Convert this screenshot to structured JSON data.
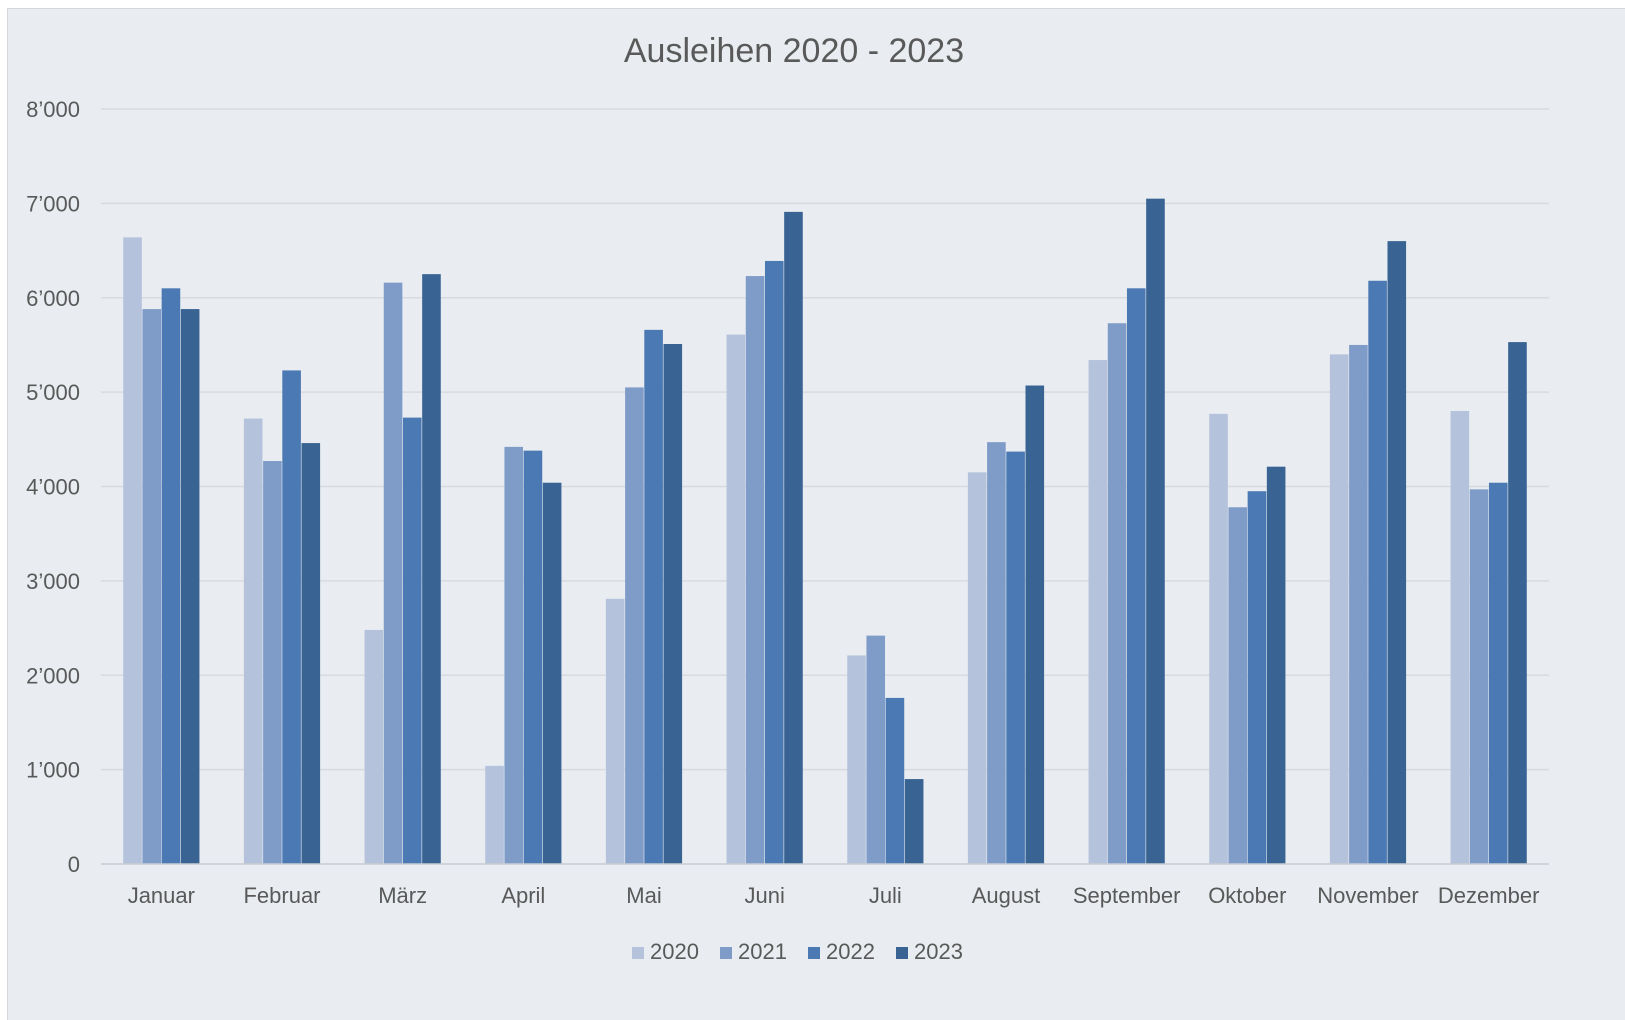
{
  "chart_data": {
    "type": "bar",
    "title": "Ausleihen 2020 - 2023",
    "xlabel": "",
    "ylabel": "",
    "ylim": [
      0,
      8000
    ],
    "yticks": [
      0,
      1000,
      2000,
      3000,
      4000,
      5000,
      6000,
      7000,
      8000
    ],
    "ytick_labels": [
      "0",
      "1’000",
      "2’000",
      "3’000",
      "4’000",
      "5’000",
      "6’000",
      "7’000",
      "8’000"
    ],
    "grid": "horizontal",
    "legend_position": "bottom",
    "categories": [
      "Januar",
      "Februar",
      "März",
      "April",
      "Mai",
      "Juni",
      "Juli",
      "August",
      "September",
      "Oktober",
      "November",
      "Dezember"
    ],
    "series": [
      {
        "name": "2020",
        "color": "#b4c2dc",
        "values": [
          6640,
          4720,
          2480,
          1040,
          2810,
          5610,
          2210,
          4150,
          5340,
          4770,
          5400,
          4800
        ]
      },
      {
        "name": "2021",
        "color": "#7f9cc8",
        "values": [
          5880,
          4270,
          6160,
          4420,
          5050,
          6230,
          2420,
          4470,
          5730,
          3780,
          5500,
          3970
        ]
      },
      {
        "name": "2022",
        "color": "#4b79b3",
        "values": [
          6100,
          5230,
          4730,
          4380,
          5660,
          6390,
          1760,
          4370,
          6100,
          3950,
          6180,
          4040
        ]
      },
      {
        "name": "2023",
        "color": "#386393",
        "values": [
          5880,
          4460,
          6250,
          4040,
          5510,
          6910,
          900,
          5070,
          7050,
          4210,
          6600,
          5530
        ]
      }
    ]
  }
}
